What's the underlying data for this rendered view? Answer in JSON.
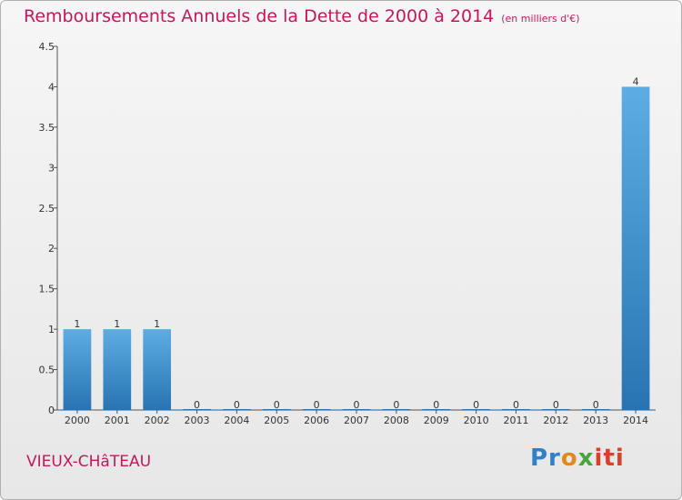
{
  "header": {
    "title": "Remboursements Annuels de la Dette de 2000 à 2014",
    "unit": "(en milliers d'€)"
  },
  "footer": {
    "place": "VIEUX-CHâTEAU",
    "logo": [
      "Pr",
      "o",
      "x",
      "iti"
    ]
  },
  "chart_data": {
    "type": "bar",
    "title": "Remboursements Annuels de la Dette de 2000 à 2014",
    "subtitle": "(en milliers d'€)",
    "xlabel": "",
    "ylabel": "",
    "categories": [
      "2000",
      "2001",
      "2002",
      "2003",
      "2004",
      "2005",
      "2006",
      "2007",
      "2008",
      "2009",
      "2010",
      "2011",
      "2012",
      "2013",
      "2014"
    ],
    "values": [
      1,
      1,
      1,
      0,
      0,
      0,
      0,
      0,
      0,
      0,
      0,
      0,
      0,
      0,
      4
    ],
    "value_labels": [
      "1",
      "1",
      "1",
      "0",
      "0",
      "0",
      "0",
      "0",
      "0",
      "0",
      "0",
      "0",
      "0",
      "0",
      "4"
    ],
    "ylim": [
      0,
      4.5
    ],
    "yticks": [
      0,
      0.5,
      1,
      1.5,
      2,
      2.5,
      3,
      3.5,
      4,
      4.5
    ],
    "ytick_labels": [
      "0",
      "0.5",
      "1",
      "1.5",
      "2",
      "2.5",
      "3",
      "3.5",
      "4",
      "4.5"
    ],
    "grid": false,
    "colors": {
      "bar_light": "#5dade2",
      "bar_dark": "#2874b2",
      "title": "#c2185b"
    }
  }
}
